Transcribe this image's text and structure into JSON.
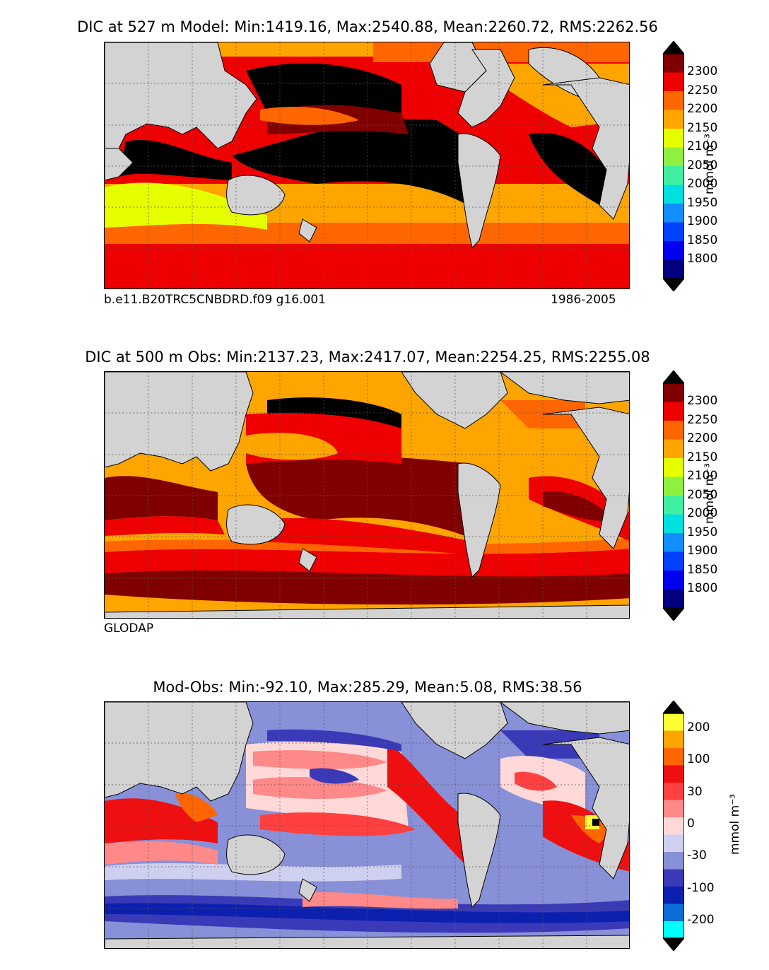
{
  "panels": [
    {
      "title": "DIC at 527 m Model: Min:1419.16, Max:2540.88, Mean:2260.72, RMS:2262.56",
      "caption_left": "b.e11.B20TRC5CNBDRD.f09 g16.001",
      "caption_right": "1986-2005",
      "colorbar_ticks": [
        "2300",
        "2250",
        "2200",
        "2150",
        "2100",
        "2050",
        "2000",
        "1950",
        "1900",
        "1850",
        "1800"
      ],
      "colorbar_unit": "mmol m⁻³"
    },
    {
      "title": "DIC at 500 m Obs: Min:2137.23, Max:2417.07, Mean:2254.25, RMS:2255.08",
      "caption_left": "GLODAP",
      "colorbar_ticks": [
        "2300",
        "2250",
        "2200",
        "2150",
        "2100",
        "2050",
        "2000",
        "1950",
        "1900",
        "1850",
        "1800"
      ],
      "colorbar_unit": "mmol m⁻³"
    },
    {
      "title": "Mod-Obs: Min:-92.10, Max:285.29, Mean:5.08, RMS:38.56",
      "colorbar_ticks": [
        "200",
        "100",
        "30",
        "0",
        "-30",
        "-100",
        "-200"
      ],
      "colorbar_unit": "mmol m⁻³"
    }
  ],
  "colors": {
    "land": "#d3d3d3",
    "dic_scale": [
      "#000080",
      "#0000ee",
      "#0040ff",
      "#1090ff",
      "#00e0e0",
      "#40f0a0",
      "#90f040",
      "#e6ff00",
      "#ffa500",
      "#ff6600",
      "#ee0000",
      "#800000"
    ],
    "dic_over": "#000000",
    "diff_scale": [
      "#00ffff",
      "#0b6ed8",
      "#0c20b0",
      "#3a3ab8",
      "#8890d8",
      "#cfd0f0",
      "#ffd8d8",
      "#ff8888",
      "#ff4040",
      "#ee1010",
      "#ff6600",
      "#ffa500",
      "#ffff33"
    ],
    "diff_over": "#000000"
  }
}
